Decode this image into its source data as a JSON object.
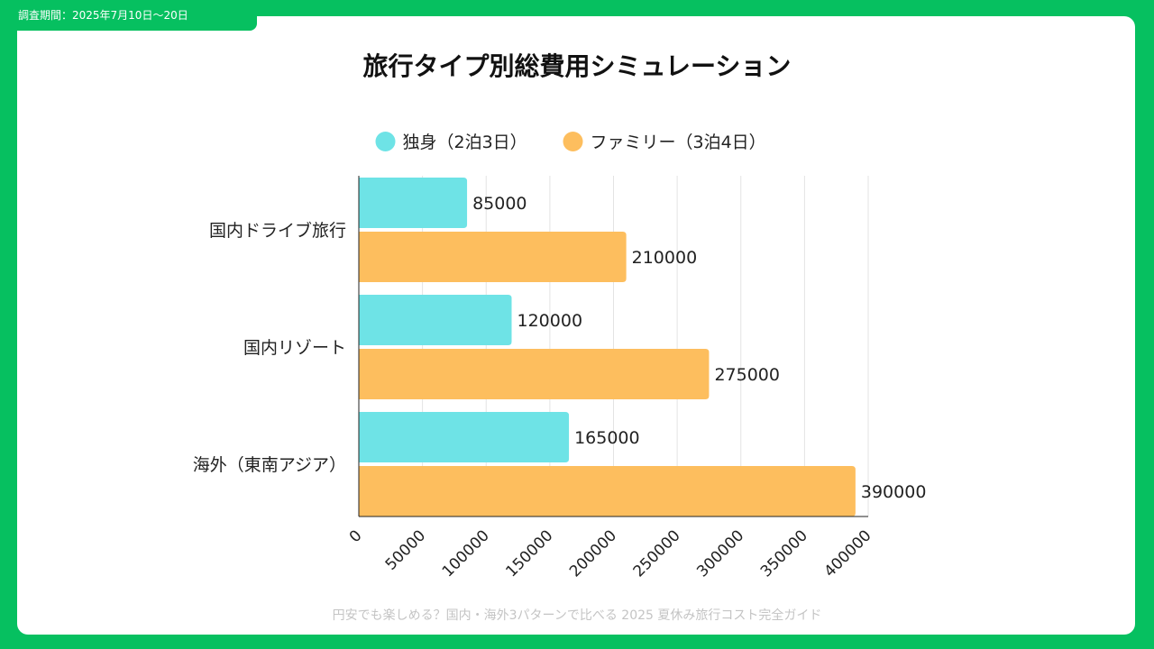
{
  "survey_period": "調査期間：2025年7月10日〜20日",
  "footer": "円安でも楽しめる？国内・海外3パターンで比べる 2025 夏休み旅行コスト完全ガイド",
  "colors": {
    "background": "#06c060",
    "panel": "#ffffff",
    "grid": "#e3e3e3",
    "axis": "#222222"
  },
  "chart_data": {
    "type": "bar",
    "orientation": "horizontal",
    "title": "旅行タイプ別総費用シミュレーション",
    "categories": [
      "国内ドライブ旅行",
      "国内リゾート",
      "海外（東南アジア）"
    ],
    "series": [
      {
        "name": "独身（2泊3日）",
        "color": "#6ee3e6",
        "values": [
          85000,
          120000,
          165000
        ]
      },
      {
        "name": "ファミリー（3泊4日）",
        "color": "#fdbe5e",
        "values": [
          210000,
          275000,
          390000
        ]
      }
    ],
    "xlim": [
      0,
      400000
    ],
    "xticks": [
      "0",
      "50000",
      "100000",
      "150000",
      "200000",
      "250000",
      "300000",
      "350000",
      "400000"
    ],
    "xlabel": "",
    "ylabel": "",
    "grid": true,
    "legend": "top-center",
    "data_labels": true
  }
}
